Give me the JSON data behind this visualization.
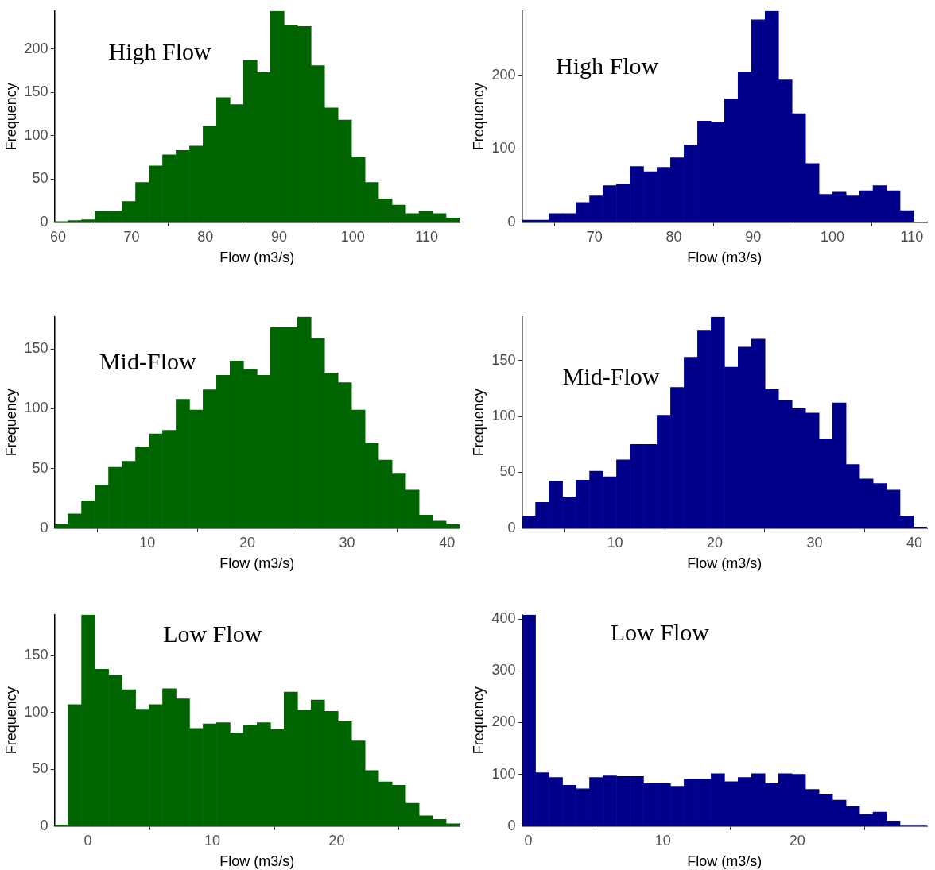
{
  "chart_data": [
    {
      "type": "histogram",
      "title": "High Flow",
      "xlabel": "Flow (m3/s)",
      "ylabel": "Frequency",
      "color": "#006400",
      "grid": false,
      "bins": [
        59.54,
        61.37,
        63.2,
        65.03,
        66.86,
        68.7,
        70.53,
        72.36,
        74.19,
        76.02,
        77.85,
        79.68,
        81.51,
        83.34,
        85.17,
        87.01,
        88.84,
        90.67,
        92.5,
        94.33,
        96.16,
        97.99,
        99.82,
        101.65,
        103.48,
        105.32,
        107.15,
        108.98,
        110.81,
        112.64,
        114.47
      ],
      "values": [
        1,
        2,
        3,
        13,
        13,
        24,
        46,
        65,
        78,
        83,
        88,
        111,
        144,
        136,
        187,
        173,
        244,
        227,
        226,
        181,
        132,
        118,
        75,
        46,
        27,
        20,
        10,
        13,
        10,
        5
      ],
      "xlim": [
        59.54,
        114.47
      ],
      "xticks": [
        60,
        70,
        80,
        90,
        100,
        110
      ],
      "ylim": [
        0,
        244
      ],
      "yticks": [
        0,
        50,
        100,
        150,
        200
      ]
    },
    {
      "type": "histogram",
      "title": "High Flow",
      "xlabel": "Flow (m3/s)",
      "ylabel": "Frequency",
      "color": "#00008b",
      "grid": false,
      "bins": [
        60.86,
        62.56,
        64.26,
        65.97,
        67.67,
        69.37,
        71.07,
        72.77,
        74.48,
        76.18,
        77.88,
        79.58,
        81.28,
        82.99,
        84.69,
        86.39,
        88.09,
        89.79,
        91.5,
        93.2,
        94.9,
        96.6,
        98.3,
        100.01,
        101.71,
        103.41,
        105.11,
        106.81,
        108.52,
        110.22,
        111.92
      ],
      "values": [
        3,
        3,
        12,
        12,
        27,
        36,
        50,
        52,
        76,
        69,
        75,
        88,
        105,
        138,
        136,
        168,
        205,
        276,
        288,
        194,
        148,
        80,
        38,
        41,
        36,
        43,
        50,
        43,
        16,
        0
      ],
      "xlim": [
        60.86,
        111.92
      ],
      "xticks": [
        70,
        80,
        90,
        100,
        110
      ],
      "ylim": [
        0,
        288
      ],
      "yticks": [
        0,
        100,
        200
      ]
    },
    {
      "type": "histogram",
      "title": "Mid-Flow",
      "xlabel": "Flow (m3/s)",
      "ylabel": "Frequency",
      "color": "#006400",
      "grid": false,
      "bins": [
        0.72,
        2.07,
        3.42,
        4.77,
        6.12,
        7.48,
        8.83,
        10.18,
        11.53,
        12.88,
        14.23,
        15.58,
        16.93,
        18.28,
        19.63,
        20.99,
        22.34,
        23.69,
        25.04,
        26.39,
        27.74,
        29.09,
        30.44,
        31.79,
        33.14,
        34.5,
        35.85,
        37.2,
        38.55,
        39.9,
        41.25
      ],
      "values": [
        3,
        12,
        23,
        36,
        51,
        56,
        68,
        79,
        82,
        108,
        99,
        116,
        128,
        140,
        133,
        128,
        168,
        168,
        177,
        159,
        130,
        122,
        99,
        71,
        57,
        46,
        32,
        11,
        6,
        3
      ],
      "xlim": [
        0.72,
        41.25
      ],
      "xticks": [
        10,
        20,
        30,
        40
      ],
      "ylim": [
        0,
        177
      ],
      "yticks": [
        0,
        50,
        100,
        150
      ]
    },
    {
      "type": "histogram",
      "title": "Mid-Flow",
      "xlabel": "Flow (m3/s)",
      "ylabel": "Frequency",
      "color": "#00008b",
      "grid": false,
      "bins": [
        0.68,
        2.03,
        3.39,
        4.74,
        6.09,
        7.45,
        8.8,
        10.15,
        11.5,
        12.86,
        14.21,
        15.56,
        16.92,
        18.27,
        19.62,
        20.98,
        22.33,
        23.68,
        25.03,
        26.39,
        27.74,
        29.09,
        30.45,
        31.8,
        33.15,
        34.51,
        35.86,
        37.21,
        38.56,
        39.92,
        41.27
      ],
      "values": [
        11,
        23,
        42,
        28,
        43,
        51,
        46,
        61,
        75,
        75,
        101,
        126,
        153,
        177,
        189,
        144,
        162,
        169,
        124,
        114,
        107,
        103,
        80,
        112,
        57,
        44,
        40,
        34,
        11,
        1
      ],
      "xlim": [
        0.68,
        41.27
      ],
      "xticks": [
        10,
        20,
        30,
        40
      ],
      "ylim": [
        0,
        189
      ],
      "yticks": [
        0,
        50,
        100,
        150
      ]
    },
    {
      "type": "histogram",
      "title": "Low Flow",
      "xlabel": "Flow (m3/s)",
      "ylabel": "Frequency",
      "color": "#006400",
      "grid": false,
      "bins": [
        -2.67,
        -1.59,
        -0.5,
        0.59,
        1.67,
        2.76,
        3.84,
        4.93,
        6.01,
        7.1,
        8.18,
        9.27,
        10.35,
        11.44,
        12.52,
        13.61,
        14.69,
        15.78,
        16.86,
        17.95,
        19.03,
        20.12,
        21.2,
        22.29,
        23.37,
        24.46,
        25.54,
        26.63,
        27.71,
        28.8,
        29.88
      ],
      "values": [
        1,
        107,
        186,
        138,
        133,
        120,
        103,
        107,
        121,
        112,
        86,
        90,
        91,
        82,
        89,
        91,
        85,
        118,
        102,
        111,
        101,
        92,
        75,
        49,
        39,
        36,
        20,
        9,
        6,
        2
      ],
      "xlim": [
        -2.67,
        29.88
      ],
      "xticks": [
        0,
        10,
        20
      ],
      "ylim": [
        0,
        186
      ],
      "yticks": [
        0,
        50,
        100,
        150
      ]
    },
    {
      "type": "histogram",
      "title": "Low Flow",
      "xlabel": "Flow (m3/s)",
      "ylabel": "Frequency",
      "color": "#00008b",
      "grid": false,
      "bins": [
        -0.47,
        0.53,
        1.54,
        2.54,
        3.55,
        4.55,
        5.55,
        6.56,
        7.56,
        8.57,
        9.57,
        10.57,
        11.58,
        12.58,
        13.59,
        14.59,
        15.59,
        16.6,
        17.6,
        18.61,
        19.61,
        20.61,
        21.62,
        22.62,
        23.63,
        24.63,
        25.63,
        26.64,
        27.64,
        28.65,
        29.65
      ],
      "values": [
        408,
        103,
        94,
        79,
        72,
        94,
        97,
        96,
        96,
        82,
        82,
        77,
        91,
        91,
        101,
        86,
        94,
        101,
        82,
        101,
        100,
        71,
        62,
        50,
        38,
        23,
        27,
        10,
        2,
        2
      ],
      "xlim": [
        -0.47,
        29.65
      ],
      "xticks": [
        0,
        10,
        20
      ],
      "ylim": [
        0,
        408
      ],
      "yticks": [
        0,
        100,
        200,
        300,
        400
      ]
    }
  ]
}
